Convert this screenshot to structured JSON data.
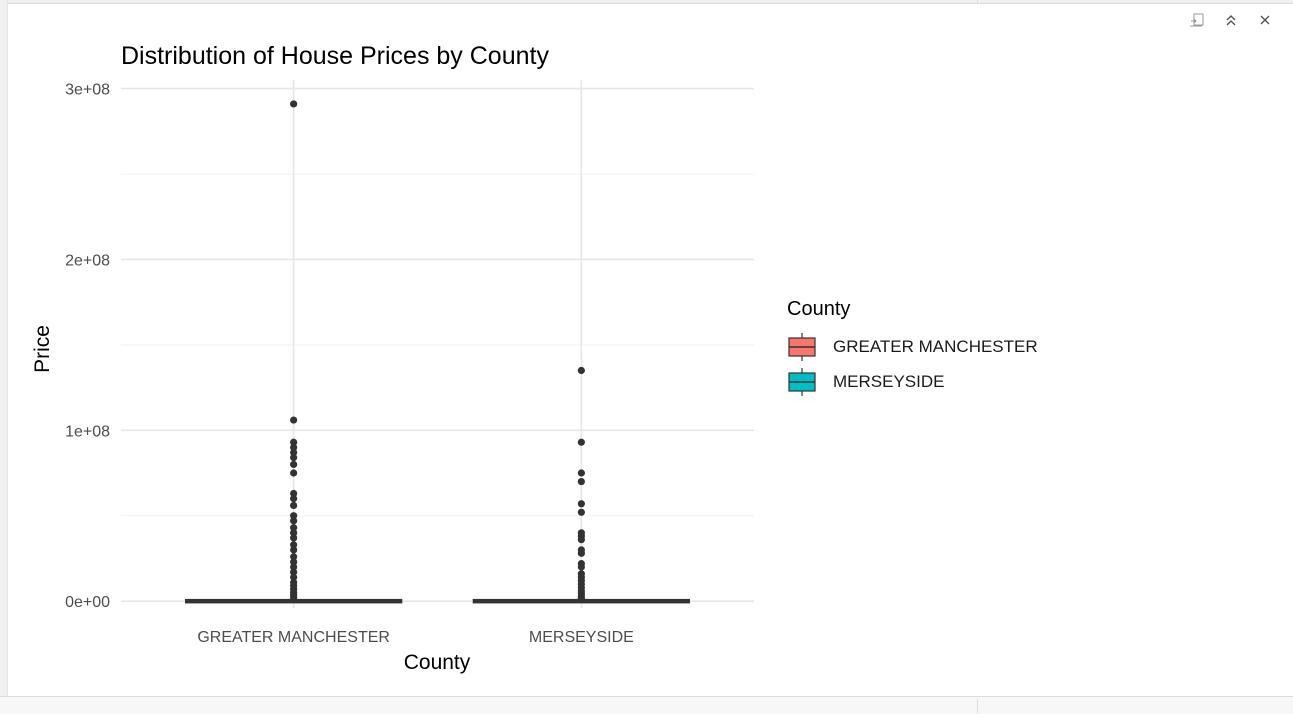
{
  "viewer": {
    "controls": [
      {
        "name": "export-icon"
      },
      {
        "name": "chevrons-up-icon"
      },
      {
        "name": "close-icon"
      }
    ]
  },
  "chart_data": {
    "type": "box",
    "title": "Distribution of House Prices by County",
    "xlabel": "County",
    "ylabel": "Price",
    "categories": [
      "GREATER MANCHESTER",
      "MERSEYSIDE"
    ],
    "ylim": [
      -4000000,
      305000000
    ],
    "y_ticks": [
      0,
      100000000,
      200000000,
      300000000
    ],
    "y_tick_labels": [
      "0e+00",
      "1e+08",
      "2e+08",
      "3e+08"
    ],
    "grid": true,
    "legend": {
      "title": "County",
      "position": "right",
      "items": [
        {
          "label": "GREATER MANCHESTER",
          "color": "#F8766D"
        },
        {
          "label": "MERSEYSIDE",
          "color": "#00BFC4"
        }
      ]
    },
    "series": [
      {
        "category": "GREATER MANCHESTER",
        "color": "#F8766D",
        "box": {
          "min": 0,
          "q1": 0,
          "median": 0,
          "q3": 0,
          "max": 0
        },
        "outliers": [
          291000000,
          106000000,
          93000000,
          90000000,
          87000000,
          84000000,
          80000000,
          75000000,
          63000000,
          60000000,
          56000000,
          50000000,
          47000000,
          43000000,
          40000000,
          37000000,
          33000000,
          30000000,
          26000000,
          23000000,
          20000000,
          17000000,
          14000000,
          11000000,
          9000000,
          7000000,
          5000000,
          3500000,
          2000000
        ]
      },
      {
        "category": "MERSEYSIDE",
        "color": "#00BFC4",
        "box": {
          "min": 0,
          "q1": 0,
          "median": 0,
          "q3": 0,
          "max": 0
        },
        "outliers": [
          135000000,
          93000000,
          75000000,
          70000000,
          57000000,
          52000000,
          40000000,
          38000000,
          36000000,
          30000000,
          28000000,
          22000000,
          20000000,
          16000000,
          14000000,
          12000000,
          10000000,
          8000000,
          6000000,
          4500000,
          3000000,
          1800000
        ]
      }
    ]
  }
}
